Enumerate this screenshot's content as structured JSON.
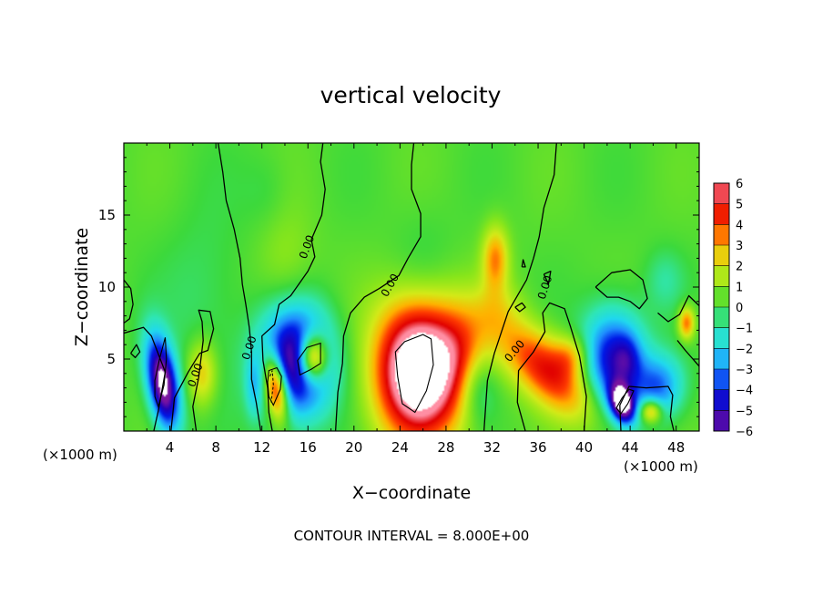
{
  "chart_data": {
    "type": "heatmap",
    "title": "vertical velocity",
    "xlabel": "X−coordinate",
    "ylabel": "Z−coordinate",
    "x_unit_left": "(×1000 m)",
    "x_unit_right": "(×1000 m)",
    "xlim": [
      0,
      50
    ],
    "ylim": [
      0,
      20
    ],
    "x_ticks": [
      4,
      8,
      12,
      16,
      20,
      24,
      28,
      32,
      36,
      40,
      44,
      48
    ],
    "y_ticks": [
      5,
      10,
      15
    ],
    "colorbar": {
      "ticks": [
        "6",
        "5",
        "4",
        "3",
        "2",
        "1",
        "0",
        "−1",
        "−2",
        "−3",
        "−4",
        "−5",
        "−6"
      ],
      "range": [
        -6,
        6
      ]
    },
    "contour_labels": [
      "0.00",
      "0.00",
      "0.00",
      "0.00",
      "0.00",
      "0.00",
      "0.00",
      "0.00"
    ],
    "background_value": 0.3,
    "features": [
      {
        "x": 3.4,
        "z": 3.3,
        "sx": 0.9,
        "sz": 2.3,
        "value": -7.5,
        "rot": 12
      },
      {
        "x": 6.8,
        "z": 4.0,
        "sx": 0.9,
        "sz": 1.6,
        "value": 2.5,
        "rot": 0
      },
      {
        "x": 11.3,
        "z": 3.0,
        "sx": 0.5,
        "sz": 1.5,
        "value": -1.5,
        "rot": 0
      },
      {
        "x": 15.0,
        "z": 4.8,
        "sx": 2.2,
        "sz": 2.6,
        "value": -7.0,
        "rot": 0
      },
      {
        "x": 13.2,
        "z": 3.1,
        "sx": 0.7,
        "sz": 1.6,
        "value": 7.0,
        "rot": 10
      },
      {
        "x": 16.4,
        "z": 5.1,
        "sx": 0.9,
        "sz": 1.2,
        "value": 7.0,
        "rot": 0
      },
      {
        "x": 22.0,
        "z": 4.5,
        "sx": 2.0,
        "sz": 3.0,
        "value": -1.0,
        "rot": 0
      },
      {
        "x": 25.6,
        "z": 4.3,
        "sx": 2.9,
        "sz": 3.3,
        "value": 9.0,
        "rot": 0
      },
      {
        "x": 29.5,
        "z": 6.0,
        "sx": 1.6,
        "sz": 2.0,
        "value": 1.2,
        "rot": 0
      },
      {
        "x": 32.3,
        "z": 12.0,
        "sx": 0.8,
        "sz": 1.6,
        "value": 3.0,
        "rot": 0
      },
      {
        "x": 32.5,
        "z": 8.5,
        "sx": 1.6,
        "sz": 1.4,
        "value": 1.0,
        "rot": 0
      },
      {
        "x": 30.8,
        "z": 3.0,
        "sx": 1.2,
        "sz": 1.8,
        "value": -1.8,
        "rot": 0
      },
      {
        "x": 36.8,
        "z": 4.2,
        "sx": 3.4,
        "sz": 1.5,
        "value": 4.5,
        "rot": -35
      },
      {
        "x": 39.0,
        "z": 5.3,
        "sx": 1.1,
        "sz": 1.0,
        "value": 2.0,
        "rot": 0
      },
      {
        "x": 42.5,
        "z": 5.0,
        "sx": 1.9,
        "sz": 2.4,
        "value": -5.0,
        "rot": 0
      },
      {
        "x": 43.8,
        "z": 5.0,
        "sx": 0.8,
        "sz": 1.2,
        "value": -1.5,
        "rot": 0
      },
      {
        "x": 43.3,
        "z": 1.9,
        "sx": 0.7,
        "sz": 1.0,
        "value": -7.0,
        "rot": 25
      },
      {
        "x": 45.8,
        "z": 1.4,
        "sx": 0.7,
        "sz": 0.6,
        "value": 4.0,
        "rot": 0
      },
      {
        "x": 46.5,
        "z": 3.0,
        "sx": 1.5,
        "sz": 1.6,
        "value": -3.5,
        "rot": -30
      },
      {
        "x": 48.9,
        "z": 7.5,
        "sx": 0.5,
        "sz": 0.8,
        "value": 3.5,
        "rot": 0
      },
      {
        "x": 14.0,
        "z": 11.5,
        "sx": 1.8,
        "sz": 3.0,
        "value": 0.9,
        "rot": 0
      },
      {
        "x": 7.0,
        "z": 9.0,
        "sx": 2.5,
        "sz": 4.5,
        "value": -0.7,
        "rot": 0
      },
      {
        "x": 12.5,
        "z": 16.5,
        "sx": 1.5,
        "sz": 2.0,
        "value": -0.5,
        "rot": 0
      },
      {
        "x": 26.0,
        "z": 11.0,
        "sx": 2.0,
        "sz": 3.0,
        "value": -0.6,
        "rot": 0
      },
      {
        "x": 47.0,
        "z": 10.5,
        "sx": 1.2,
        "sz": 1.5,
        "value": -1.0,
        "rot": 0
      }
    ],
    "zero_contours": [
      [
        [
          8.2,
          20
        ],
        [
          8.6,
          18
        ],
        [
          8.9,
          16
        ],
        [
          9.6,
          14
        ],
        [
          10.1,
          12
        ],
        [
          10.3,
          10.2
        ],
        [
          10.6,
          8.8
        ],
        [
          10.9,
          7.2
        ],
        [
          11.1,
          5.5
        ],
        [
          11.1,
          3.6
        ],
        [
          11.5,
          2.0
        ],
        [
          11.9,
          0
        ]
      ],
      [
        [
          17.3,
          20
        ],
        [
          17.1,
          18.7
        ],
        [
          17.5,
          16.8
        ],
        [
          17.2,
          15.0
        ],
        [
          16.3,
          13.3
        ],
        [
          16.6,
          12.1
        ],
        [
          16.0,
          11.1
        ],
        [
          14.5,
          9.4
        ],
        [
          13.5,
          8.8
        ],
        [
          13.1,
          7.4
        ],
        [
          12.0,
          6.6
        ],
        [
          12.1,
          4.9
        ],
        [
          12.5,
          3.0
        ],
        [
          12.6,
          1.3
        ],
        [
          12.9,
          0
        ]
      ],
      [
        [
          25.2,
          20
        ],
        [
          25.0,
          18.5
        ],
        [
          25.0,
          16.8
        ],
        [
          25.8,
          15.1
        ],
        [
          25.8,
          13.5
        ],
        [
          24.7,
          12.0
        ],
        [
          23.9,
          10.8
        ],
        [
          22.2,
          9.9
        ],
        [
          20.9,
          9.3
        ],
        [
          19.7,
          8.2
        ],
        [
          19.1,
          6.6
        ],
        [
          19.0,
          4.7
        ],
        [
          18.6,
          2.7
        ],
        [
          18.4,
          0
        ]
      ],
      [
        [
          37.6,
          20
        ],
        [
          37.4,
          17.8
        ],
        [
          36.5,
          15.5
        ],
        [
          36.1,
          13.5
        ],
        [
          35.6,
          12.0
        ],
        [
          35.0,
          10.5
        ],
        [
          33.4,
          8.3
        ],
        [
          32.2,
          5.4
        ],
        [
          31.6,
          3.5
        ],
        [
          31.3,
          0
        ]
      ],
      [
        [
          40.0,
          0
        ],
        [
          40.2,
          2.4
        ],
        [
          39.6,
          5.2
        ],
        [
          38.8,
          7.3
        ],
        [
          38.3,
          8.5
        ],
        [
          37.0,
          8.9
        ],
        [
          36.4,
          8.2
        ],
        [
          36.6,
          6.9
        ],
        [
          35.6,
          5.5
        ],
        [
          34.3,
          4.2
        ],
        [
          34.2,
          2.0
        ],
        [
          34.9,
          0
        ]
      ],
      [
        [
          41.0,
          10.0
        ],
        [
          42.4,
          11.0
        ],
        [
          44.0,
          11.2
        ],
        [
          45.1,
          10.5
        ],
        [
          45.5,
          9.2
        ],
        [
          44.8,
          8.5
        ],
        [
          44.0,
          9.0
        ],
        [
          43.0,
          9.3
        ],
        [
          42.0,
          9.3
        ],
        [
          41.0,
          10.0
        ]
      ],
      [
        [
          43.2,
          0
        ],
        [
          43.1,
          1.8
        ],
        [
          43.9,
          3.1
        ],
        [
          45.4,
          3.0
        ],
        [
          47.3,
          3.1
        ],
        [
          47.7,
          2.5
        ],
        [
          47.5,
          1.0
        ],
        [
          47.8,
          0
        ]
      ],
      [
        [
          50.0,
          8.7
        ],
        [
          49.1,
          9.4
        ],
        [
          48.3,
          8.1
        ],
        [
          47.3,
          7.6
        ],
        [
          46.4,
          8.2
        ]
      ],
      [
        [
          50.0,
          4.5
        ],
        [
          48.8,
          5.6
        ],
        [
          48.1,
          6.3
        ]
      ],
      [
        [
          0.0,
          10.5
        ],
        [
          0.6,
          9.9
        ],
        [
          0.8,
          8.8
        ],
        [
          0.5,
          7.8
        ],
        [
          0.0,
          7.5
        ]
      ],
      [
        [
          0.6,
          5.4
        ],
        [
          1.1,
          6.0
        ],
        [
          1.4,
          5.5
        ],
        [
          1.0,
          5.1
        ],
        [
          0.6,
          5.4
        ]
      ],
      [
        [
          0.0,
          6.8
        ],
        [
          1.7,
          7.2
        ],
        [
          2.4,
          6.6
        ],
        [
          3.6,
          4.1
        ],
        [
          3.0,
          1.4
        ],
        [
          2.6,
          0
        ]
      ],
      [
        [
          4.1,
          0
        ],
        [
          4.4,
          2.3
        ],
        [
          5.6,
          4.1
        ],
        [
          6.6,
          5.4
        ],
        [
          7.3,
          5.6
        ],
        [
          7.8,
          7.1
        ],
        [
          7.5,
          8.3
        ],
        [
          6.5,
          8.4
        ],
        [
          6.8,
          7.6
        ],
        [
          6.9,
          6.3
        ],
        [
          6.5,
          3.7
        ],
        [
          6.0,
          1.7
        ],
        [
          6.3,
          0
        ]
      ],
      [
        [
          36.5,
          10.9
        ],
        [
          36.9,
          10.2
        ],
        [
          37.1,
          11.1
        ],
        [
          36.5,
          10.9
        ]
      ],
      [
        [
          34.6,
          11.4
        ],
        [
          34.7,
          11.9
        ],
        [
          34.9,
          11.4
        ],
        [
          34.6,
          11.4
        ]
      ],
      [
        [
          34.0,
          8.6
        ],
        [
          34.6,
          8.9
        ],
        [
          34.9,
          8.6
        ],
        [
          34.4,
          8.3
        ],
        [
          34.0,
          8.6
        ]
      ]
    ],
    "closed_contours": [
      [
        [
          3.6,
          6.5
        ],
        [
          3.7,
          5.0
        ],
        [
          3.5,
          3.2
        ],
        [
          3.2,
          2.3
        ],
        [
          3.0,
          1.7
        ],
        [
          2.7,
          2.4
        ],
        [
          2.7,
          3.5
        ],
        [
          3.1,
          5.0
        ],
        [
          3.6,
          6.5
        ]
      ],
      [
        [
          12.6,
          4.2
        ],
        [
          13.3,
          4.4
        ],
        [
          13.7,
          3.8
        ],
        [
          13.6,
          2.9
        ],
        [
          13.0,
          1.8
        ],
        [
          12.6,
          2.4
        ],
        [
          12.5,
          3.4
        ],
        [
          12.6,
          4.2
        ]
      ],
      [
        [
          15.1,
          4.9
        ],
        [
          15.9,
          5.8
        ],
        [
          17.1,
          6.1
        ],
        [
          17.1,
          4.7
        ],
        [
          16.3,
          4.3
        ],
        [
          15.3,
          3.9
        ],
        [
          15.1,
          4.9
        ]
      ],
      [
        [
          23.6,
          5.5
        ],
        [
          24.4,
          6.2
        ],
        [
          26.0,
          6.7
        ],
        [
          26.7,
          6.4
        ],
        [
          26.9,
          4.6
        ],
        [
          26.3,
          2.8
        ],
        [
          25.3,
          1.3
        ],
        [
          24.2,
          1.9
        ],
        [
          23.8,
          3.8
        ],
        [
          23.6,
          5.5
        ]
      ],
      [
        [
          43.9,
          2.9
        ],
        [
          44.3,
          2.8
        ],
        [
          43.8,
          1.9
        ],
        [
          43.2,
          1.2
        ],
        [
          42.8,
          1.6
        ],
        [
          43.3,
          2.3
        ],
        [
          43.9,
          2.9
        ]
      ]
    ],
    "dashed_contours": [
      [
        [
          12.7,
          3.8
        ],
        [
          12.9,
          4.2
        ],
        [
          13.0,
          3.2
        ],
        [
          12.8,
          2.0
        ]
      ]
    ],
    "contour_interval_label": "CONTOUR INTERVAL = 8.000E+00"
  }
}
